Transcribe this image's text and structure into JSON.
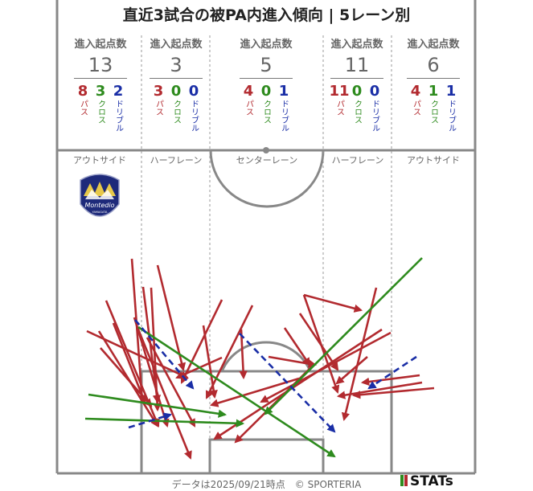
{
  "title": "直近3試合の被PA内進入傾向 | 5レーン別",
  "footer": "データは2025/09/21時点　© SPORTERIA",
  "brand": "STATs",
  "club_logo_text": "Montedio",
  "club_logo_sub": "YAMAGATA",
  "legend": {
    "pass": "パス",
    "cross": "クロス",
    "dribble": "ドリブル"
  },
  "colors": {
    "pass": "#b22a2f",
    "cross": "#2e8b1e",
    "dribble": "#1a2ea6",
    "lines": "#888888"
  },
  "chart_data": {
    "type": "table",
    "stat_label": "進入起点数",
    "lanes": [
      {
        "zone": "アウトサイド",
        "total": "13",
        "pass": "8",
        "cross": "3",
        "dribble": "2"
      },
      {
        "zone": "ハーフレーン",
        "total": "3",
        "pass": "3",
        "cross": "0",
        "dribble": "0"
      },
      {
        "zone": "センターレーン",
        "total": "5",
        "pass": "4",
        "cross": "0",
        "dribble": "1"
      },
      {
        "zone": "ハーフレーン",
        "total": "11",
        "pass": "11",
        "cross": "0",
        "dribble": "0"
      },
      {
        "zone": "アウトサイド",
        "total": "6",
        "pass": "4",
        "cross": "1",
        "dribble": "1"
      }
    ]
  }
}
